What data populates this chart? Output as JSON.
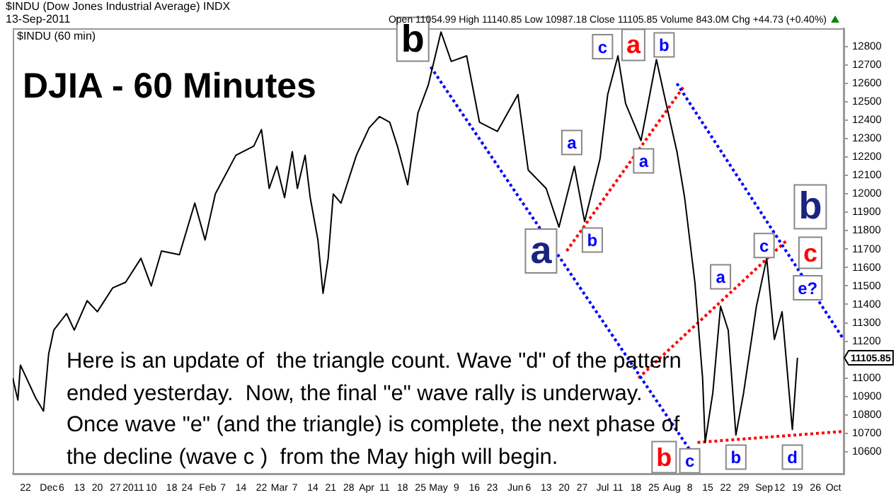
{
  "chart_data": {
    "type": "line",
    "title": "DJIA - 60 Minutes",
    "subtitle": "$INDU (Dow Jones Industrial Average) INDX",
    "annotations": [
      "13-Sep-2011",
      "$INDU (60 min)",
      "Open 11054.99 High 11140.85 Low 10987.18 Close 11105.85 Volume 843.0M Chg +44.73 (+0.40%)",
      "Here is an update of  the triangle count. Wave \"d\" of the pattern\nended yesterday.  Now, the final \"e\" wave rally is underway.\nOnce wave \"e\" (and the triangle) is complete, the next phase of\nthe decline (wave c )  from the May high will begin.",
      "11105.85",
      {
        "text": "b",
        "x": "2011-04-22",
        "y": 12840
      },
      {
        "text": "c",
        "x": "2011-07-05",
        "y": 12800
      },
      {
        "text": "a",
        "x": "2011-07-17",
        "y": 12810
      },
      {
        "text": "b",
        "x": "2011-07-29",
        "y": 12810
      },
      {
        "text": "a",
        "x": "2011-06-23",
        "y": 12280
      },
      {
        "text": "a",
        "x": "2011-07-21",
        "y": 12180
      },
      {
        "text": "a",
        "x": "2011-06-11",
        "y": 11690
      },
      {
        "text": "b",
        "x": "2011-07-01",
        "y": 11750
      },
      {
        "text": "b",
        "x": "2011-09-24",
        "y": 11930
      },
      {
        "text": "c",
        "x": "2011-09-24",
        "y": 11680
      },
      {
        "text": "e?",
        "x": "2011-09-23",
        "y": 11490
      },
      {
        "text": "c",
        "x": "2011-09-06",
        "y": 11720
      },
      {
        "text": "a",
        "x": "2011-08-20",
        "y": 11550
      },
      {
        "text": "b",
        "x": "2011-07-29",
        "y": 10570
      },
      {
        "text": "c",
        "x": "2011-08-08",
        "y": 10550
      },
      {
        "text": "b",
        "x": "2011-08-26",
        "y": 10570
      },
      {
        "text": "d",
        "x": "2011-09-17",
        "y": 10570
      }
    ],
    "x": [
      "2010-11-17",
      "2010-11-19",
      "2010-11-20",
      "2010-11-26",
      "2010-11-29",
      "2010-12-01",
      "2010-12-03",
      "2010-12-08",
      "2010-12-11",
      "2010-12-16",
      "2010-12-20",
      "2010-12-26",
      "2010-12-31",
      "2011-01-06",
      "2011-01-10",
      "2011-01-14",
      "2011-01-21",
      "2011-01-27",
      "2011-01-31",
      "2011-02-04",
      "2011-02-12",
      "2011-02-19",
      "2011-02-22",
      "2011-02-25",
      "2011-02-28",
      "2011-03-03",
      "2011-03-06",
      "2011-03-08",
      "2011-03-11",
      "2011-03-13",
      "2011-03-16",
      "2011-03-18",
      "2011-03-20",
      "2011-03-22",
      "2011-03-25",
      "2011-03-31",
      "2011-04-05",
      "2011-04-09",
      "2011-04-13",
      "2011-04-16",
      "2011-04-20",
      "2011-04-24",
      "2011-04-28",
      "2011-05-03",
      "2011-05-07",
      "2011-05-13",
      "2011-05-18",
      "2011-05-25",
      "2011-06-02",
      "2011-06-06",
      "2011-06-13",
      "2011-06-18",
      "2011-06-24",
      "2011-06-28",
      "2011-07-04",
      "2011-07-07",
      "2011-07-11",
      "2011-07-14",
      "2011-07-20",
      "2011-07-26",
      "2011-07-29",
      "2011-08-03",
      "2011-08-06",
      "2011-08-10",
      "2011-08-13",
      "2011-08-14",
      "2011-08-17",
      "2011-08-20",
      "2011-08-23",
      "2011-08-26",
      "2011-08-29",
      "2011-09-03",
      "2011-09-07",
      "2011-09-10",
      "2011-09-13",
      "2011-09-17",
      "2011-09-19"
    ],
    "series": [
      {
        "color": "#000000",
        "values": [
          11000,
          10880,
          11070,
          10890,
          10820,
          11130,
          11260,
          11350,
          11260,
          11420,
          11360,
          11490,
          11520,
          11650,
          11500,
          11690,
          11670,
          11950,
          11750,
          12000,
          12210,
          12260,
          12350,
          12030,
          12150,
          11980,
          12230,
          12030,
          12210,
          11980,
          11750,
          11460,
          11650,
          12000,
          11950,
          12210,
          12360,
          12420,
          12390,
          12260,
          12050,
          12440,
          12590,
          12880,
          12720,
          12750,
          12390,
          12340,
          12540,
          12130,
          12030,
          11820,
          12150,
          11850,
          12190,
          12540,
          12750,
          12490,
          12290,
          12730,
          12540,
          12230,
          11980,
          11520,
          11000,
          10650,
          10920,
          11390,
          11260,
          10690,
          10920,
          11390,
          11650,
          11210,
          11360,
          10720,
          11110
        ]
      },
      {
        "color": "#0000ff",
        "line_style": "dotted",
        "x": [
          "2011-04-29",
          "2011-08-08"
        ],
        "values": [
          12690,
          10610
        ]
      },
      {
        "color": "#0000ff",
        "line_style": "dotted",
        "x": [
          "2011-08-03",
          "2011-10-07"
        ],
        "values": [
          12600,
          11210
        ]
      },
      {
        "color": "#ff0000",
        "line_style": "dotted",
        "x": [
          "2011-06-21",
          "2011-08-06"
        ],
        "values": [
          11690,
          12590
        ]
      },
      {
        "color": "#ff0000",
        "line_style": "dotted",
        "x": [
          "2011-07-19",
          "2011-09-15"
        ],
        "values": [
          11000,
          11750
        ]
      },
      {
        "color": "#ff0000",
        "line_style": "dotted",
        "x": [
          "2011-08-11",
          "2011-10-07"
        ],
        "values": [
          10650,
          10710
        ]
      }
    ],
    "xlim": [
      "2010-11-17",
      "2011-10-07"
    ],
    "xticks": [
      {
        "value": "2010-11-22",
        "label": "22"
      },
      {
        "value": "2010-12-01",
        "label": "Dec"
      },
      {
        "value": "2010-12-06",
        "label": "6"
      },
      {
        "value": "2010-12-13",
        "label": "13"
      },
      {
        "value": "2010-12-20",
        "label": "20"
      },
      {
        "value": "2010-12-27",
        "label": "27"
      },
      {
        "value": "2011-01-03",
        "label": "2011"
      },
      {
        "value": "2011-01-10",
        "label": "10"
      },
      {
        "value": "2011-01-18",
        "label": "18"
      },
      {
        "value": "2011-01-24",
        "label": "24"
      },
      {
        "value": "2011-02-01",
        "label": "Feb"
      },
      {
        "value": "2011-02-07",
        "label": "7"
      },
      {
        "value": "2011-02-14",
        "label": "14"
      },
      {
        "value": "2011-02-22",
        "label": "22"
      },
      {
        "value": "2011-03-01",
        "label": "Mar"
      },
      {
        "value": "2011-03-07",
        "label": "7"
      },
      {
        "value": "2011-03-14",
        "label": "14"
      },
      {
        "value": "2011-03-21",
        "label": "21"
      },
      {
        "value": "2011-03-28",
        "label": "28"
      },
      {
        "value": "2011-04-04",
        "label": "Apr"
      },
      {
        "value": "2011-04-11",
        "label": "11"
      },
      {
        "value": "2011-04-18",
        "label": "18"
      },
      {
        "value": "2011-04-25",
        "label": "25"
      },
      {
        "value": "2011-05-02",
        "label": "May"
      },
      {
        "value": "2011-05-09",
        "label": "9"
      },
      {
        "value": "2011-05-16",
        "label": "16"
      },
      {
        "value": "2011-05-23",
        "label": "23"
      },
      {
        "value": "2011-06-01",
        "label": "Jun"
      },
      {
        "value": "2011-06-06",
        "label": "6"
      },
      {
        "value": "2011-06-13",
        "label": "13"
      },
      {
        "value": "2011-06-20",
        "label": "20"
      },
      {
        "value": "2011-06-27",
        "label": "27"
      },
      {
        "value": "2011-07-05",
        "label": "Jul"
      },
      {
        "value": "2011-07-11",
        "label": "11"
      },
      {
        "value": "2011-07-18",
        "label": "18"
      },
      {
        "value": "2011-07-25",
        "label": "25"
      },
      {
        "value": "2011-08-01",
        "label": "Aug"
      },
      {
        "value": "2011-08-08",
        "label": "8"
      },
      {
        "value": "2011-08-15",
        "label": "15"
      },
      {
        "value": "2011-08-22",
        "label": "22"
      },
      {
        "value": "2011-08-29",
        "label": "29"
      },
      {
        "value": "2011-09-06",
        "label": "Sep"
      },
      {
        "value": "2011-09-12",
        "label": "12"
      },
      {
        "value": "2011-09-19",
        "label": "19"
      },
      {
        "value": "2011-09-26",
        "label": "26"
      },
      {
        "value": "2011-10-03",
        "label": "Oct"
      }
    ],
    "ylim": [
      10480,
      12900
    ],
    "yticks": [
      10600,
      10700,
      10800,
      10900,
      11000,
      11200,
      11300,
      11400,
      11500,
      11600,
      11700,
      11800,
      11900,
      12000,
      12100,
      12200,
      12300,
      12400,
      12500,
      12600,
      12700,
      12800
    ],
    "grid": false,
    "legend": false,
    "marker": "none",
    "line_style": "solid"
  }
}
